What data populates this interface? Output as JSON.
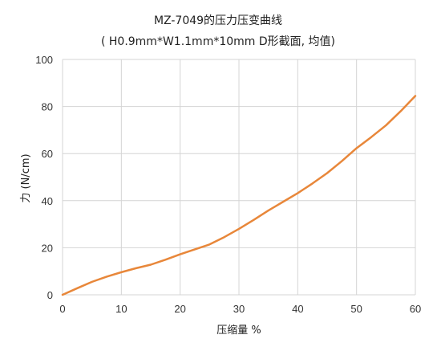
{
  "chart_data": {
    "type": "line",
    "title": "MZ-7049的压力压变曲线",
    "subtitle": "( H0.9mm*W1.1mm*10mm D形截面, 均值)",
    "xlabel": "压缩量 %",
    "ylabel": "力 (N/cm)",
    "xlim": [
      0,
      60
    ],
    "ylim": [
      0,
      100
    ],
    "x_ticks": [
      "0",
      "10",
      "20",
      "30",
      "40",
      "50",
      "60"
    ],
    "y_ticks": [
      "0",
      "20",
      "40",
      "60",
      "80",
      "100"
    ],
    "grid": true,
    "legend": "none",
    "series": [
      {
        "color": "#e8873a",
        "x": [
          0,
          2.5,
          5,
          7.5,
          10,
          12.5,
          15,
          17.5,
          20,
          22.5,
          25,
          27.5,
          30,
          32.5,
          35,
          37.5,
          40,
          42.5,
          45,
          47.5,
          50,
          52.5,
          55,
          57.5,
          60
        ],
        "y": [
          0,
          2.8,
          5.5,
          7.7,
          9.6,
          11.3,
          12.8,
          14.9,
          17.2,
          19.3,
          21.4,
          24.5,
          28,
          31.8,
          35.8,
          39.5,
          43.2,
          47.3,
          51.7,
          56.8,
          62.3,
          67,
          72,
          78,
          84.5
        ]
      }
    ]
  }
}
